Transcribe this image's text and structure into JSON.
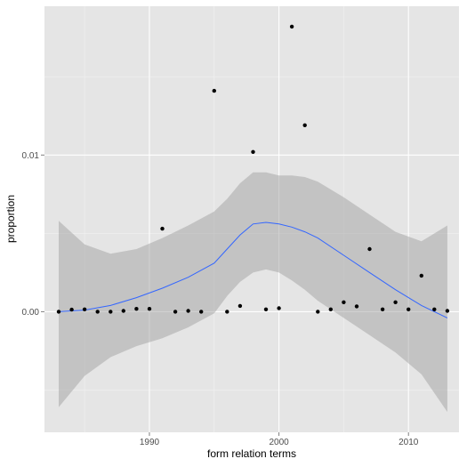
{
  "chart_data": {
    "type": "scatter",
    "title": "",
    "xlabel": "form relation terms",
    "ylabel": "proportion",
    "xlim": [
      1981.9,
      2013.9
    ],
    "ylim": [
      -0.0077,
      0.0195
    ],
    "x_ticks": [
      1990,
      2000,
      2010
    ],
    "x_tick_labels": [
      "1990",
      "2000",
      "2010"
    ],
    "y_ticks": [
      0.0,
      0.01
    ],
    "y_tick_labels": [
      "0.00",
      "0.01"
    ],
    "grid": true,
    "legend": "none",
    "colors": {
      "panel": "#e5e5e5",
      "grid": "#ffffff",
      "points": "#000000",
      "smooth_line": "#3366ff",
      "ribbon": "#999999"
    },
    "series": [
      {
        "kind": "points",
        "x": [
          1983,
          1984,
          1985,
          1986,
          1987,
          1988,
          1989,
          1990,
          1991,
          1992,
          1993,
          1994,
          1995,
          1996,
          1997,
          1998,
          1999,
          2000,
          2001,
          2002,
          2003,
          2004,
          2005,
          2006,
          2007,
          2008,
          2009,
          2010,
          2011,
          2012,
          2013
        ],
        "y": [
          0.0,
          0.00013,
          0.00015,
          0.0,
          0.0,
          5e-05,
          0.00018,
          0.00018,
          0.0053,
          0.0,
          5e-05,
          0.0,
          0.0141,
          0.0,
          0.00037,
          0.0102,
          0.00015,
          0.00022,
          0.0182,
          0.0119,
          0.0,
          0.00015,
          0.0006,
          0.00034,
          0.004,
          0.00015,
          0.0006,
          0.00015,
          0.0023,
          0.00015,
          5e-05
        ]
      },
      {
        "kind": "smooth",
        "x": [
          1983,
          1985,
          1987,
          1989,
          1991,
          1993,
          1995,
          1996,
          1997,
          1998,
          1999,
          2000,
          2001,
          2002,
          2003,
          2005,
          2007,
          2009,
          2011,
          2013
        ],
        "y": [
          0.0,
          0.0001,
          0.0004,
          0.0009,
          0.0015,
          0.0022,
          0.0031,
          0.004,
          0.0049,
          0.0056,
          0.0057,
          0.0056,
          0.0054,
          0.0051,
          0.0047,
          0.0036,
          0.0025,
          0.0014,
          0.0004,
          -0.0004
        ],
        "lower": [
          -0.0061,
          -0.0041,
          -0.0029,
          -0.0022,
          -0.0017,
          -0.001,
          -0.0001,
          0.001,
          0.0019,
          0.0025,
          0.0027,
          0.0025,
          0.002,
          0.0014,
          0.0007,
          -0.0004,
          -0.0015,
          -0.0026,
          -0.004,
          -0.0064
        ],
        "upper": [
          0.0058,
          0.0043,
          0.0037,
          0.004,
          0.0047,
          0.0055,
          0.0064,
          0.0072,
          0.0082,
          0.0089,
          0.0089,
          0.0087,
          0.0087,
          0.0086,
          0.0083,
          0.0073,
          0.0062,
          0.0051,
          0.0045,
          0.0055
        ]
      }
    ]
  }
}
